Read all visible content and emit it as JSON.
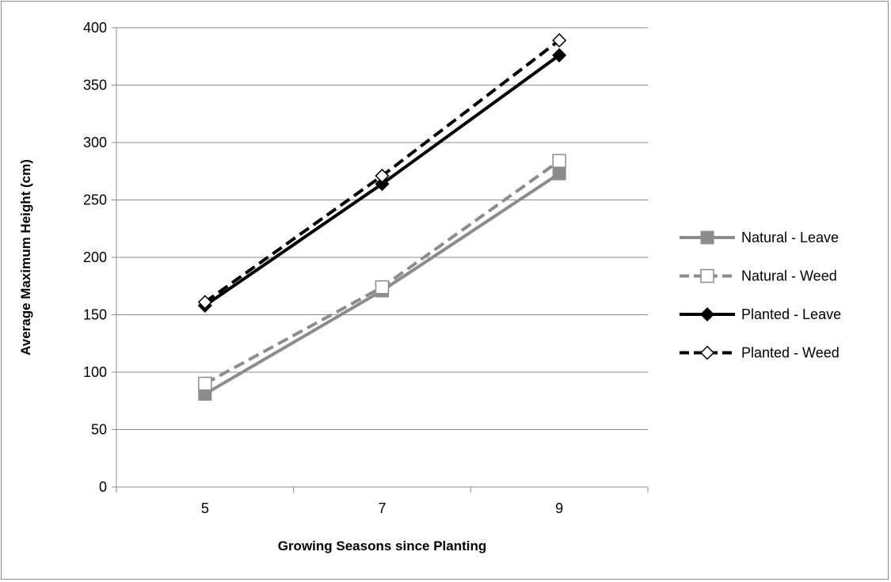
{
  "chart_data": {
    "type": "line",
    "title": "",
    "xlabel": "Growing Seasons since Planting",
    "ylabel": "Average Maximum Height (cm)",
    "x": [
      5,
      7,
      9
    ],
    "xlim": [
      4,
      10
    ],
    "xticks": [
      5,
      7,
      9
    ],
    "ylim": [
      0,
      400
    ],
    "yticks": [
      0,
      50,
      100,
      150,
      200,
      250,
      300,
      350,
      400
    ],
    "grid": "horizontal",
    "legend_position": "right",
    "series": [
      {
        "name": "Natural - Leave",
        "values": [
          81,
          171,
          273
        ],
        "color": "#8c8c8c",
        "dash": "solid",
        "marker": "square-filled"
      },
      {
        "name": "Natural - Weed",
        "values": [
          90,
          174,
          284
        ],
        "color": "#8c8c8c",
        "dash": "dashed",
        "marker": "square-open"
      },
      {
        "name": "Planted - Leave",
        "values": [
          158,
          264,
          376
        ],
        "color": "#000000",
        "dash": "solid",
        "marker": "diamond-filled"
      },
      {
        "name": "Planted - Weed",
        "values": [
          161,
          271,
          389
        ],
        "color": "#000000",
        "dash": "dashed",
        "marker": "diamond-open"
      }
    ]
  }
}
